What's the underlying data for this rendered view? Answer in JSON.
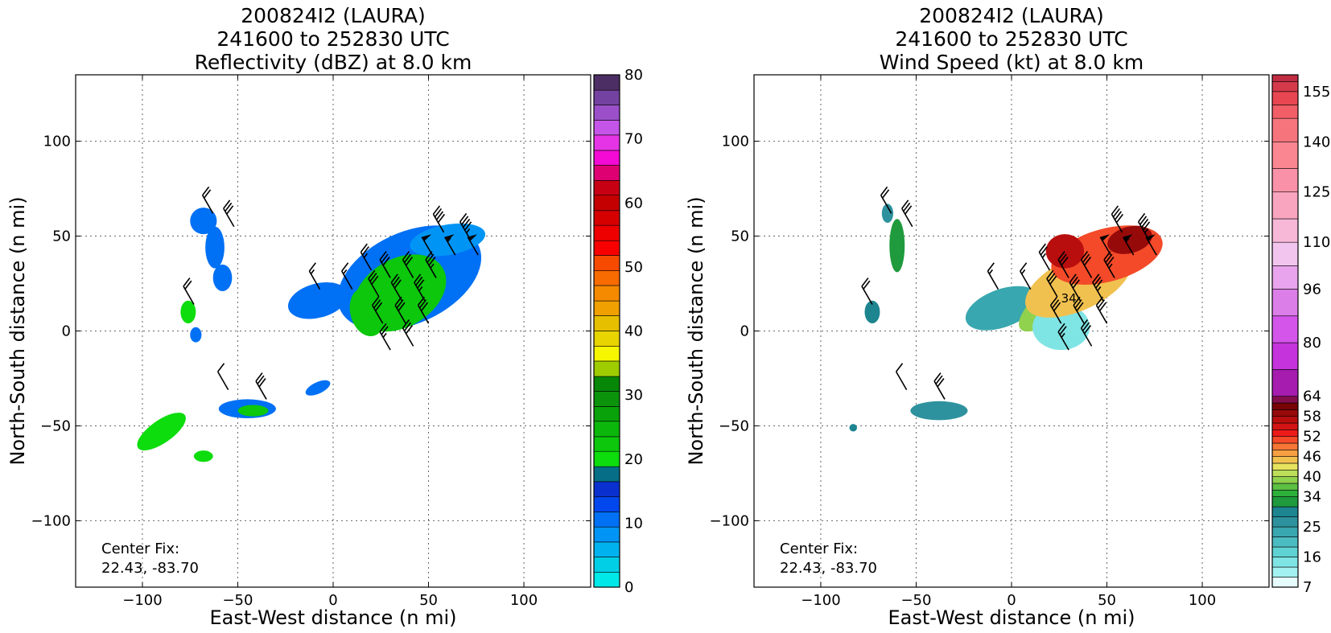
{
  "chart_data": [
    {
      "type": "heatmap",
      "title_lines": [
        "200824I2 (LAURA)",
        "241600 to 252830 UTC",
        "Reflectivity (dBZ) at 8.0 km"
      ],
      "xlabel": "East-West distance (n mi)",
      "ylabel": "North-South distance (n mi)",
      "xlim": [
        -135,
        135
      ],
      "ylim": [
        -135,
        135
      ],
      "x_ticks": [
        -100,
        -50,
        0,
        50,
        100
      ],
      "y_ticks": [
        -100,
        -50,
        0,
        50,
        100
      ],
      "x_tick_labels": [
        "−100",
        "−50",
        "0",
        "50",
        "100"
      ],
      "y_tick_labels": [
        "−100",
        "−50",
        "0",
        "50",
        "100"
      ],
      "grid": true,
      "annotation_lines": [
        "Center Fix:",
        "22.43, -83.70"
      ],
      "colorbar": {
        "label_values": [
          0,
          10,
          20,
          30,
          40,
          50,
          60,
          70,
          80
        ],
        "vmin": 0,
        "vmax": 80,
        "colors": [
          "#00e8e8",
          "#00cfe6",
          "#00b3ef",
          "#0095f5",
          "#0070f5",
          "#0048ee",
          "#0a31cf",
          "#066e86",
          "#0ddc0d",
          "#0cc70c",
          "#0bb70b",
          "#0aa20a",
          "#0c930c",
          "#078707",
          "#9fcc00",
          "#f6f600",
          "#e8d400",
          "#e6bf00",
          "#f0a000",
          "#f58a00",
          "#f86b00",
          "#f64a00",
          "#f80000",
          "#ee0000",
          "#d60000",
          "#c50000",
          "#c80014",
          "#de0072",
          "#f40ad5",
          "#e534e5",
          "#c555e8",
          "#9b4fc8",
          "#7442a0",
          "#4c2e64",
          "#000000"
        ],
        "stops": [
          0,
          2.35,
          4.7,
          7.05,
          9.4,
          11.76,
          14.1,
          16.47,
          18.82,
          21.2,
          23.5,
          25.9,
          28.2,
          30.6,
          32.9,
          35.3,
          37.6,
          40.0,
          42.4,
          44.7,
          47.1,
          49.4,
          51.8,
          54.1,
          56.5,
          58.8,
          61.2,
          63.5,
          65.9,
          68.2,
          70.6,
          72.9,
          75.3,
          77.6,
          80
        ]
      },
      "echo_regions": [
        {
          "cx": 40,
          "cy": 28,
          "rx": 40,
          "ry": 24,
          "rot": -25,
          "value": 10
        },
        {
          "cx": 35,
          "cy": 20,
          "rx": 26,
          "ry": 18,
          "rot": -30,
          "value": 22
        },
        {
          "cx": 18,
          "cy": 10,
          "rx": 9,
          "ry": 13,
          "rot": -15,
          "value": 22
        },
        {
          "cx": 60,
          "cy": 48,
          "rx": 20,
          "ry": 8,
          "rot": -10,
          "value": 8
        },
        {
          "cx": -8,
          "cy": 16,
          "rx": 16,
          "ry": 9,
          "rot": -15,
          "value": 10
        },
        {
          "cx": -68,
          "cy": 58,
          "rx": 7,
          "ry": 7,
          "rot": 0,
          "value": 11
        },
        {
          "cx": -62,
          "cy": 44,
          "rx": 5,
          "ry": 11,
          "rot": 0,
          "value": 10
        },
        {
          "cx": -58,
          "cy": 28,
          "rx": 5,
          "ry": 7,
          "rot": 0,
          "value": 11
        },
        {
          "cx": -76,
          "cy": 10,
          "rx": 4,
          "ry": 6,
          "rot": 0,
          "value": 21
        },
        {
          "cx": -72,
          "cy": -2,
          "rx": 3,
          "ry": 4,
          "rot": 0,
          "value": 10
        },
        {
          "cx": -45,
          "cy": -41,
          "rx": 15,
          "ry": 5,
          "rot": 0,
          "value": 10
        },
        {
          "cx": -42,
          "cy": -42,
          "rx": 8,
          "ry": 3,
          "rot": 0,
          "value": 22
        },
        {
          "cx": -8,
          "cy": -30,
          "rx": 7,
          "ry": 3,
          "rot": -25,
          "value": 10
        },
        {
          "cx": -90,
          "cy": -53,
          "rx": 15,
          "ry": 6,
          "rot": -35,
          "value": 21
        },
        {
          "cx": -68,
          "cy": -66,
          "rx": 5,
          "ry": 3,
          "rot": 0,
          "value": 21
        }
      ],
      "wind_barbs": [
        {
          "x": -63,
          "y": 62,
          "speed": 20
        },
        {
          "x": -52,
          "y": 55,
          "speed": 30
        },
        {
          "x": -73,
          "y": 14,
          "speed": 20
        },
        {
          "x": -55,
          "y": -31,
          "speed": 10
        },
        {
          "x": -35,
          "y": -36,
          "speed": 30
        },
        {
          "x": -7,
          "y": 22,
          "speed": 15
        },
        {
          "x": 10,
          "y": 22,
          "speed": 15
        },
        {
          "x": 20,
          "y": 32,
          "speed": 25
        },
        {
          "x": 30,
          "y": 28,
          "speed": 30
        },
        {
          "x": 42,
          "y": 28,
          "speed": 30
        },
        {
          "x": 54,
          "y": 28,
          "speed": 35
        },
        {
          "x": 24,
          "y": 18,
          "speed": 30
        },
        {
          "x": 36,
          "y": 16,
          "speed": 30
        },
        {
          "x": 48,
          "y": 16,
          "speed": 35
        },
        {
          "x": 26,
          "y": 4,
          "speed": 30
        },
        {
          "x": 38,
          "y": 4,
          "speed": 30
        },
        {
          "x": 50,
          "y": 4,
          "speed": 30
        },
        {
          "x": 30,
          "y": -10,
          "speed": 25
        },
        {
          "x": 42,
          "y": -8,
          "speed": 30
        },
        {
          "x": 52,
          "y": 40,
          "speed": 50
        },
        {
          "x": 64,
          "y": 40,
          "speed": 55
        },
        {
          "x": 76,
          "y": 40,
          "speed": 50
        },
        {
          "x": 58,
          "y": 52,
          "speed": 40
        },
        {
          "x": 72,
          "y": 48,
          "speed": 45
        }
      ]
    },
    {
      "type": "heatmap",
      "title_lines": [
        "200824I2 (LAURA)",
        "241600 to 252830 UTC",
        "Wind Speed (kt) at 8.0 km"
      ],
      "xlabel": "East-West distance (n mi)",
      "ylabel": "North-South distance (n mi)",
      "xlim": [
        -135,
        135
      ],
      "ylim": [
        -135,
        135
      ],
      "x_ticks": [
        -100,
        -50,
        0,
        50,
        100
      ],
      "y_ticks": [
        -100,
        -50,
        0,
        50,
        100
      ],
      "x_tick_labels": [
        "−100",
        "−50",
        "0",
        "50",
        "100"
      ],
      "y_tick_labels": [
        "−100",
        "−50",
        "0",
        "50",
        "100"
      ],
      "grid": true,
      "annotation_lines": [
        "Center Fix:",
        "22.43, -83.70"
      ],
      "contour_label": "34",
      "colorbar": {
        "label_values": [
          7,
          16,
          25,
          34,
          40,
          46,
          52,
          58,
          64,
          80,
          96,
          110,
          125,
          140,
          155
        ],
        "vmin": 7,
        "vmax": 160,
        "colors": [
          "#e6fbfb",
          "#a4f1f1",
          "#7fe4e4",
          "#5fd3d3",
          "#4bbcc1",
          "#39a7af",
          "#2e929e",
          "#1d8590",
          "#1f9a3c",
          "#2db13b",
          "#5cc043",
          "#90d14e",
          "#bcde58",
          "#e7e35f",
          "#f1c14f",
          "#f69f43",
          "#f67636",
          "#f44a29",
          "#ee1a1a",
          "#d41414",
          "#b80e0e",
          "#970a0a",
          "#780404",
          "#820f4b",
          "#a51cae",
          "#c433dc",
          "#d455ea",
          "#dc7ee8",
          "#e8a5ed",
          "#f2c5ee",
          "#f7b8d8",
          "#f9a5bf",
          "#f992a8",
          "#f98690",
          "#f6757d",
          "#f15e66",
          "#e84651",
          "#d43a4a",
          "#c02c42",
          "#a6173a",
          "#941039"
        ],
        "stops": [
          7,
          10,
          13,
          16,
          19,
          22,
          25,
          28,
          31,
          34,
          36,
          38,
          40,
          42,
          44,
          46,
          48,
          50,
          52,
          54,
          56,
          58,
          60,
          62,
          64,
          72,
          80,
          88,
          96,
          103,
          110,
          117,
          125,
          132,
          140,
          147,
          151,
          155,
          158,
          160
        ]
      },
      "speed_regions": [
        {
          "cx": -5,
          "cy": 12,
          "rx": 20,
          "ry": 10,
          "rot": -20,
          "value": 22
        },
        {
          "cx": 20,
          "cy": 14,
          "rx": 20,
          "ry": 8,
          "rot": -40,
          "value": 38
        },
        {
          "cx": 26,
          "cy": 2,
          "rx": 15,
          "ry": 12,
          "rot": 0,
          "value": 14
        },
        {
          "cx": 35,
          "cy": 25,
          "rx": 30,
          "ry": 14,
          "rot": -25,
          "value": 44
        },
        {
          "cx": 50,
          "cy": 40,
          "rx": 30,
          "ry": 14,
          "rot": -15,
          "value": 50
        },
        {
          "cx": 28,
          "cy": 42,
          "rx": 10,
          "ry": 9,
          "rot": 0,
          "value": 56
        },
        {
          "cx": 62,
          "cy": 48,
          "rx": 12,
          "ry": 7,
          "rot": -15,
          "value": 58
        },
        {
          "cx": -60,
          "cy": 45,
          "rx": 4,
          "ry": 14,
          "rot": 0,
          "value": 33
        },
        {
          "cx": -65,
          "cy": 62,
          "rx": 3,
          "ry": 5,
          "rot": 0,
          "value": 25
        },
        {
          "cx": -73,
          "cy": 10,
          "rx": 4,
          "ry": 6,
          "rot": 0,
          "value": 30
        },
        {
          "cx": -38,
          "cy": -42,
          "rx": 15,
          "ry": 5,
          "rot": 0,
          "value": 26
        },
        {
          "cx": -83,
          "cy": -51,
          "rx": 2,
          "ry": 2,
          "rot": 0,
          "value": 28
        }
      ],
      "wind_barbs": [
        {
          "x": -63,
          "y": 62,
          "speed": 20
        },
        {
          "x": -52,
          "y": 55,
          "speed": 30
        },
        {
          "x": -73,
          "y": 14,
          "speed": 20
        },
        {
          "x": -55,
          "y": -31,
          "speed": 10
        },
        {
          "x": -35,
          "y": -36,
          "speed": 30
        },
        {
          "x": -7,
          "y": 22,
          "speed": 15
        },
        {
          "x": 10,
          "y": 22,
          "speed": 15
        },
        {
          "x": 20,
          "y": 32,
          "speed": 25
        },
        {
          "x": 30,
          "y": 28,
          "speed": 30
        },
        {
          "x": 42,
          "y": 28,
          "speed": 30
        },
        {
          "x": 54,
          "y": 28,
          "speed": 35
        },
        {
          "x": 24,
          "y": 18,
          "speed": 30
        },
        {
          "x": 36,
          "y": 16,
          "speed": 30
        },
        {
          "x": 48,
          "y": 16,
          "speed": 35
        },
        {
          "x": 26,
          "y": 4,
          "speed": 30
        },
        {
          "x": 38,
          "y": 4,
          "speed": 30
        },
        {
          "x": 50,
          "y": 4,
          "speed": 30
        },
        {
          "x": 30,
          "y": -10,
          "speed": 25
        },
        {
          "x": 42,
          "y": -8,
          "speed": 30
        },
        {
          "x": 52,
          "y": 40,
          "speed": 50
        },
        {
          "x": 64,
          "y": 40,
          "speed": 55
        },
        {
          "x": 76,
          "y": 40,
          "speed": 50
        },
        {
          "x": 58,
          "y": 52,
          "speed": 40
        },
        {
          "x": 72,
          "y": 48,
          "speed": 45
        }
      ]
    }
  ]
}
